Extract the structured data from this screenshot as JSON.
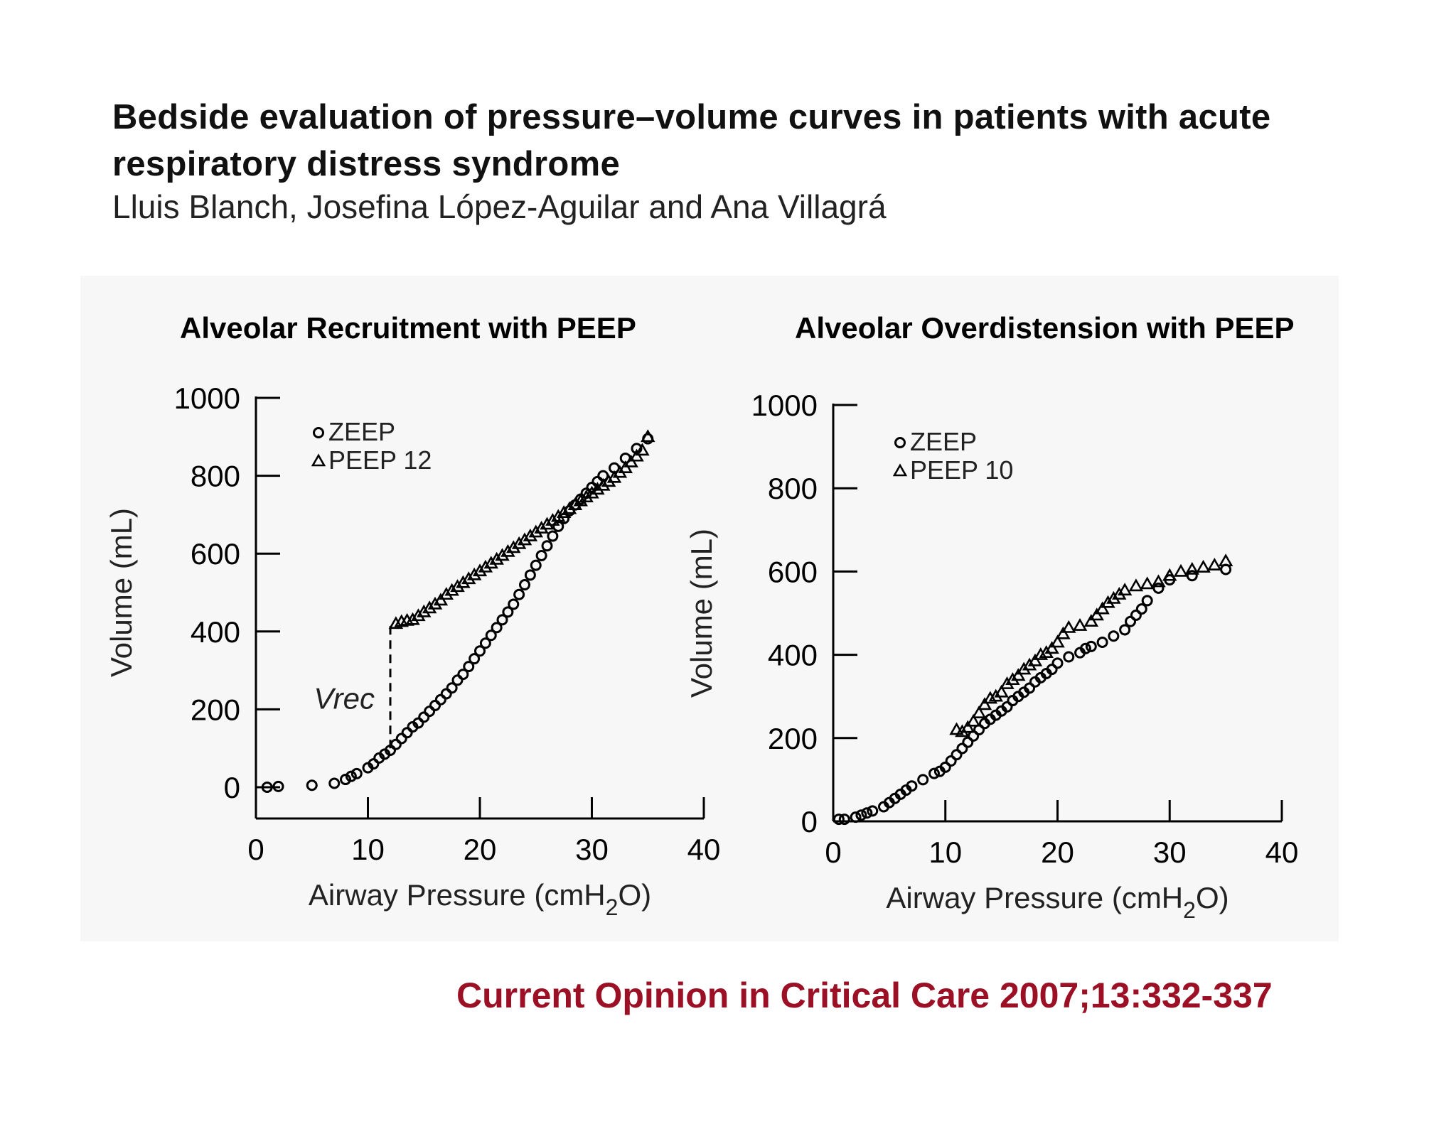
{
  "header": {
    "title": "Bedside evaluation of pressure–volume curves in patients with acute respiratory distress syndrome",
    "authors": "Lluis Blanch, Josefina López-Aguilar and Ana Villagrá"
  },
  "citation": "Current Opinion in Critical Care 2007;13:332-337",
  "colors": {
    "citation": "#9c1025",
    "panel_background": "#f7f7f7",
    "marks": "#000000"
  },
  "chart_data": [
    {
      "type": "scatter",
      "title": "Alveolar Recruitment with PEEP",
      "xlabel": "Airway Pressure (cmH",
      "xlabel_sub": "2",
      "xlabel_end": "O)",
      "ylabel": "Volume (mL)",
      "xlim": [
        0,
        40
      ],
      "ylim": [
        0,
        1000
      ],
      "xticks": [
        0,
        10,
        20,
        30,
        40
      ],
      "yticks": [
        0,
        200,
        400,
        600,
        800,
        1000
      ],
      "grid": false,
      "legend_position": "top-left",
      "annotation": {
        "text": "Vrec",
        "x": 12,
        "y_from": 100,
        "y_to": 420
      },
      "series": [
        {
          "name": "ZEEP",
          "marker": "circle",
          "points": [
            [
              1,
              0
            ],
            [
              2,
              2
            ],
            [
              5,
              5
            ],
            [
              7,
              10
            ],
            [
              8,
              20
            ],
            [
              8.5,
              28
            ],
            [
              9,
              35
            ],
            [
              10,
              50
            ],
            [
              10.5,
              60
            ],
            [
              11,
              75
            ],
            [
              11.5,
              85
            ],
            [
              12,
              95
            ],
            [
              12.5,
              110
            ],
            [
              13,
              125
            ],
            [
              13.5,
              140
            ],
            [
              14,
              155
            ],
            [
              14.5,
              165
            ],
            [
              15,
              180
            ],
            [
              15.5,
              195
            ],
            [
              16,
              210
            ],
            [
              16.5,
              225
            ],
            [
              17,
              240
            ],
            [
              17.5,
              255
            ],
            [
              18,
              275
            ],
            [
              18.5,
              290
            ],
            [
              19,
              310
            ],
            [
              19.5,
              330
            ],
            [
              20,
              350
            ],
            [
              20.5,
              370
            ],
            [
              21,
              390
            ],
            [
              21.5,
              410
            ],
            [
              22,
              430
            ],
            [
              22.5,
              450
            ],
            [
              23,
              470
            ],
            [
              23.5,
              495
            ],
            [
              24,
              520
            ],
            [
              24.5,
              545
            ],
            [
              25,
              570
            ],
            [
              25.5,
              595
            ],
            [
              26,
              620
            ],
            [
              26.5,
              645
            ],
            [
              27,
              670
            ],
            [
              27.5,
              690
            ],
            [
              28,
              710
            ],
            [
              28.5,
              725
            ],
            [
              29,
              740
            ],
            [
              29.5,
              755
            ],
            [
              30,
              770
            ],
            [
              30.5,
              785
            ],
            [
              31,
              800
            ],
            [
              32,
              820
            ],
            [
              33,
              845
            ],
            [
              34,
              870
            ],
            [
              35,
              895
            ]
          ]
        },
        {
          "name": "PEEP 12",
          "marker": "triangle",
          "points": [
            [
              12.5,
              420
            ],
            [
              13,
              425
            ],
            [
              13.5,
              428
            ],
            [
              14,
              430
            ],
            [
              14.5,
              440
            ],
            [
              15,
              450
            ],
            [
              15.5,
              460
            ],
            [
              16,
              470
            ],
            [
              16.5,
              480
            ],
            [
              17,
              495
            ],
            [
              17.5,
              505
            ],
            [
              18,
              515
            ],
            [
              18.5,
              525
            ],
            [
              19,
              535
            ],
            [
              19.5,
              545
            ],
            [
              20,
              555
            ],
            [
              20.5,
              565
            ],
            [
              21,
              575
            ],
            [
              21.5,
              585
            ],
            [
              22,
              595
            ],
            [
              22.5,
              605
            ],
            [
              23,
              615
            ],
            [
              23.5,
              625
            ],
            [
              24,
              635
            ],
            [
              24.5,
              645
            ],
            [
              25,
              655
            ],
            [
              25.5,
              665
            ],
            [
              26,
              675
            ],
            [
              26.5,
              685
            ],
            [
              27,
              695
            ],
            [
              27.5,
              705
            ],
            [
              28,
              715
            ],
            [
              28.5,
              725
            ],
            [
              29,
              735
            ],
            [
              29.5,
              745
            ],
            [
              30,
              755
            ],
            [
              30.5,
              765
            ],
            [
              31,
              775
            ],
            [
              31.5,
              785
            ],
            [
              32,
              795
            ],
            [
              32.5,
              808
            ],
            [
              33,
              820
            ],
            [
              33.5,
              835
            ],
            [
              34,
              850
            ],
            [
              34.5,
              865
            ],
            [
              35,
              900
            ]
          ]
        }
      ]
    },
    {
      "type": "scatter",
      "title": "Alveolar Overdistension with PEEP",
      "xlabel": "Airway Pressure (cmH",
      "xlabel_sub": "2",
      "xlabel_end": "O)",
      "ylabel": "Volume (mL)",
      "xlim": [
        0,
        40
      ],
      "ylim": [
        0,
        1000
      ],
      "xticks": [
        0,
        10,
        20,
        30,
        40
      ],
      "yticks": [
        0,
        200,
        400,
        600,
        800,
        1000
      ],
      "grid": false,
      "legend_position": "top-left",
      "series": [
        {
          "name": "ZEEP",
          "marker": "circle",
          "points": [
            [
              0.5,
              5
            ],
            [
              1,
              5
            ],
            [
              2,
              10
            ],
            [
              2.5,
              15
            ],
            [
              3,
              20
            ],
            [
              3.5,
              25
            ],
            [
              4.5,
              35
            ],
            [
              5,
              45
            ],
            [
              5.5,
              55
            ],
            [
              6,
              65
            ],
            [
              6.5,
              75
            ],
            [
              7,
              85
            ],
            [
              8,
              100
            ],
            [
              9,
              115
            ],
            [
              9.5,
              120
            ],
            [
              10,
              130
            ],
            [
              10.5,
              145
            ],
            [
              11,
              160
            ],
            [
              11.5,
              175
            ],
            [
              12,
              190
            ],
            [
              12.5,
              205
            ],
            [
              13,
              220
            ],
            [
              13.5,
              235
            ],
            [
              14,
              245
            ],
            [
              14.5,
              255
            ],
            [
              15,
              265
            ],
            [
              15.5,
              275
            ],
            [
              16,
              290
            ],
            [
              16.5,
              300
            ],
            [
              17,
              310
            ],
            [
              17.5,
              320
            ],
            [
              18,
              335
            ],
            [
              18.5,
              345
            ],
            [
              19,
              355
            ],
            [
              19.5,
              365
            ],
            [
              20,
              380
            ],
            [
              21,
              395
            ],
            [
              22,
              405
            ],
            [
              22.5,
              415
            ],
            [
              23,
              420
            ],
            [
              24,
              430
            ],
            [
              25,
              445
            ],
            [
              26,
              460
            ],
            [
              26.5,
              480
            ],
            [
              27,
              495
            ],
            [
              27.5,
              510
            ],
            [
              28,
              530
            ],
            [
              29,
              560
            ],
            [
              30,
              580
            ],
            [
              32,
              590
            ],
            [
              35,
              605
            ]
          ]
        },
        {
          "name": "PEEP 10",
          "marker": "triangle",
          "points": [
            [
              11,
              220
            ],
            [
              11.5,
              215
            ],
            [
              12,
              225
            ],
            [
              12.5,
              240
            ],
            [
              13,
              260
            ],
            [
              13.5,
              280
            ],
            [
              14,
              295
            ],
            [
              14.5,
              300
            ],
            [
              15,
              310
            ],
            [
              15.5,
              330
            ],
            [
              16,
              340
            ],
            [
              16.5,
              350
            ],
            [
              17,
              365
            ],
            [
              17.5,
              375
            ],
            [
              18,
              385
            ],
            [
              18.5,
              400
            ],
            [
              19,
              405
            ],
            [
              19.5,
              415
            ],
            [
              20,
              430
            ],
            [
              20.5,
              450
            ],
            [
              21,
              465
            ],
            [
              22,
              470
            ],
            [
              23,
              480
            ],
            [
              23.5,
              495
            ],
            [
              24,
              510
            ],
            [
              24.5,
              525
            ],
            [
              25,
              535
            ],
            [
              25.5,
              545
            ],
            [
              26,
              555
            ],
            [
              27,
              565
            ],
            [
              28,
              570
            ],
            [
              29,
              575
            ],
            [
              30,
              590
            ],
            [
              31,
              600
            ],
            [
              32,
              605
            ],
            [
              33,
              610
            ],
            [
              34,
              615
            ],
            [
              35,
              625
            ]
          ]
        }
      ]
    }
  ]
}
